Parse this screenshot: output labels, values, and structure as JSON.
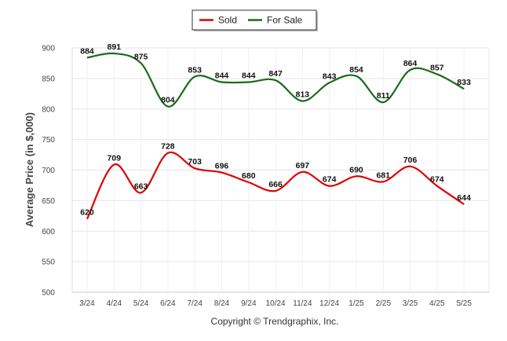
{
  "chart_data": {
    "type": "line",
    "categories": [
      "3/24",
      "4/24",
      "5/24",
      "6/24",
      "7/24",
      "8/24",
      "9/24",
      "10/24",
      "11/24",
      "12/24",
      "1/25",
      "2/25",
      "3/25",
      "4/25",
      "5/25"
    ],
    "series": [
      {
        "name": "Sold",
        "color": "#e00000",
        "values": [
          620,
          709,
          663,
          728,
          703,
          696,
          680,
          666,
          697,
          674,
          690,
          681,
          706,
          674,
          644
        ]
      },
      {
        "name": "For Sale",
        "color": "#1a6b1a",
        "values": [
          884,
          891,
          875,
          804,
          853,
          844,
          844,
          847,
          813,
          843,
          854,
          811,
          864,
          857,
          833
        ]
      }
    ],
    "ylabel": "Average Price (in $,000)",
    "xlabel": "",
    "ylim": [
      500,
      900
    ],
    "yticks": [
      500,
      550,
      600,
      650,
      700,
      750,
      800,
      850,
      900
    ],
    "grid": true,
    "legend_position": "top-center",
    "footer": "Copyright © Trendgraphix, Inc."
  }
}
